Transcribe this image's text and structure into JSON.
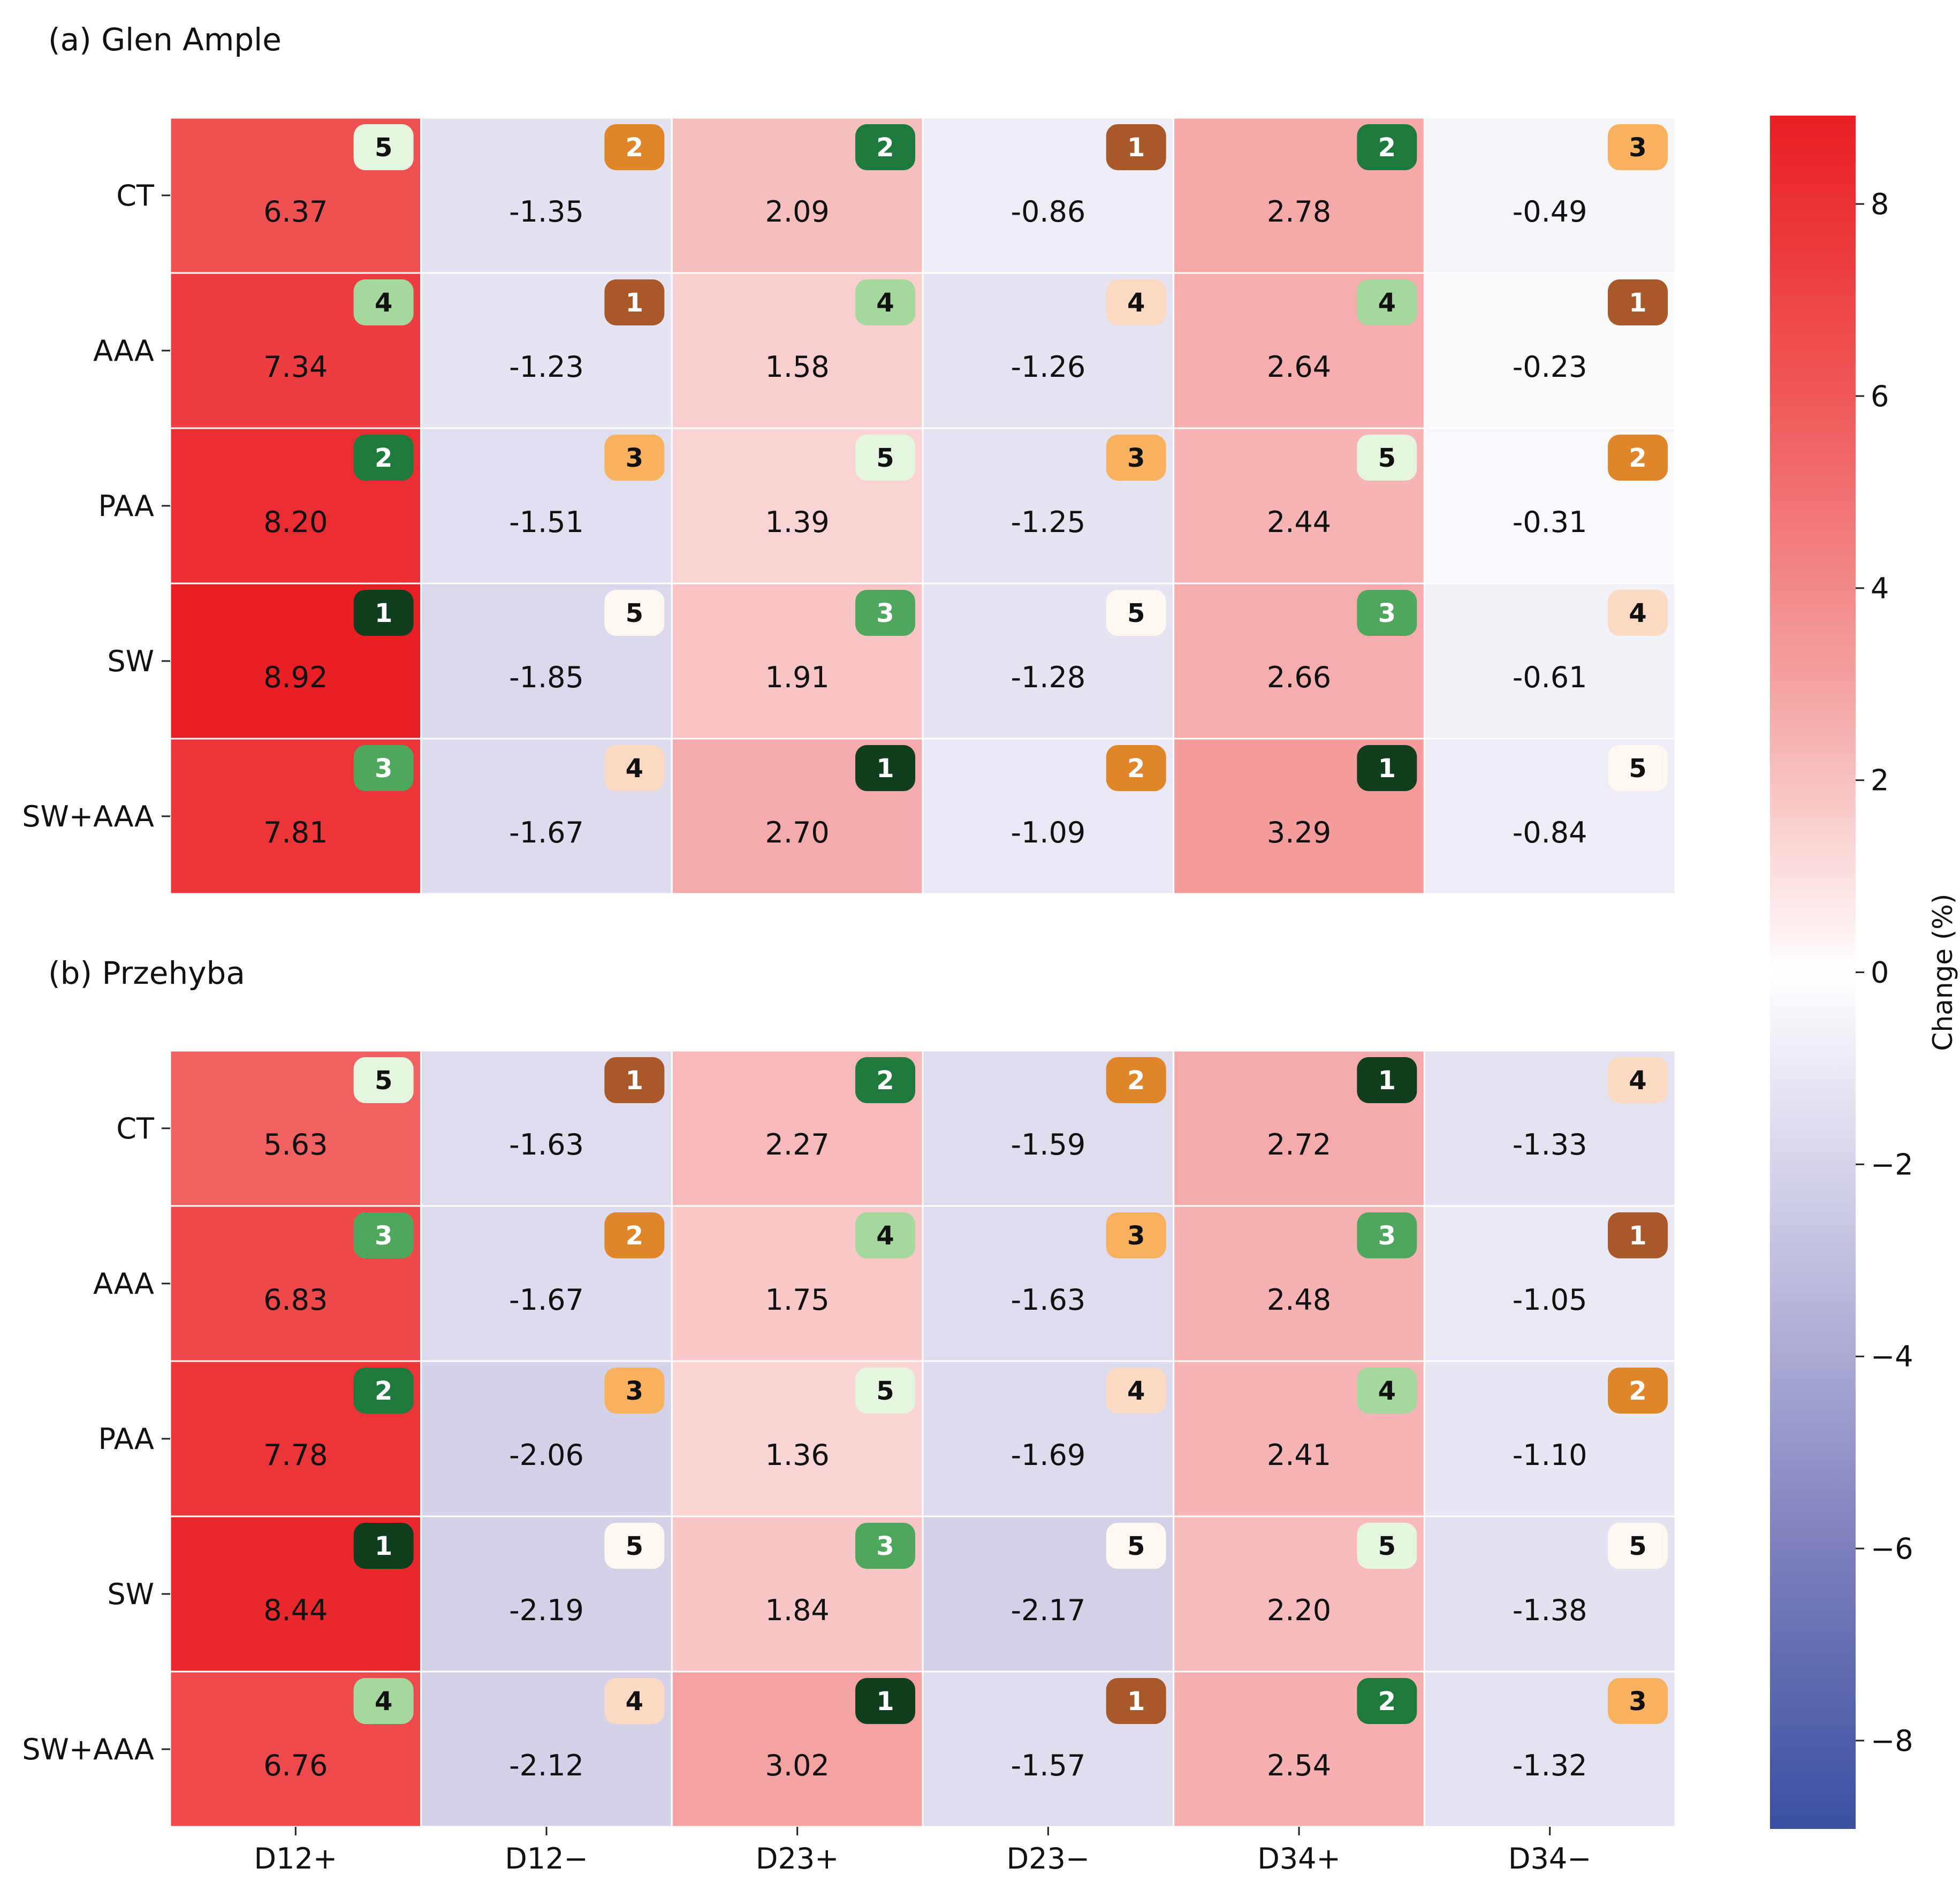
{
  "chart_data": [
    {
      "type": "heatmap",
      "title": "(a) Glen Ample",
      "rows": [
        "CT",
        "AAA",
        "PAA",
        "SW",
        "SW+AAA"
      ],
      "columns": [
        "D12+",
        "D12−",
        "D23+",
        "D23−",
        "D34+",
        "D34−"
      ],
      "values": [
        [
          6.37,
          -1.35,
          2.09,
          -0.86,
          2.78,
          -0.49
        ],
        [
          7.34,
          -1.23,
          1.58,
          -1.26,
          2.64,
          -0.23
        ],
        [
          8.2,
          -1.51,
          1.39,
          -1.25,
          2.44,
          -0.31
        ],
        [
          8.92,
          -1.85,
          1.91,
          -1.28,
          2.66,
          -0.61
        ],
        [
          7.81,
          -1.67,
          2.7,
          -1.09,
          3.29,
          -0.84
        ]
      ],
      "value_labels": [
        [
          "6.37",
          "-1.35",
          "2.09",
          "-0.86",
          "2.78",
          "-0.49"
        ],
        [
          "7.34",
          "-1.23",
          "1.58",
          "-1.26",
          "2.64",
          "-0.23"
        ],
        [
          "8.20",
          "-1.51",
          "1.39",
          "-1.25",
          "2.44",
          "-0.31"
        ],
        [
          "8.92",
          "-1.85",
          "1.91",
          "-1.28",
          "2.66",
          "-0.61"
        ],
        [
          "7.81",
          "-1.67",
          "2.70",
          "-1.09",
          "3.29",
          "-0.84"
        ]
      ],
      "ranks": [
        [
          5,
          2,
          2,
          1,
          2,
          3
        ],
        [
          4,
          1,
          4,
          4,
          4,
          1
        ],
        [
          2,
          3,
          5,
          3,
          5,
          2
        ],
        [
          1,
          5,
          3,
          5,
          3,
          4
        ],
        [
          3,
          4,
          1,
          2,
          1,
          5
        ]
      ]
    },
    {
      "type": "heatmap",
      "title": "(b) Przehyba",
      "rows": [
        "CT",
        "AAA",
        "PAA",
        "SW",
        "SW+AAA"
      ],
      "columns": [
        "D12+",
        "D12−",
        "D23+",
        "D23−",
        "D34+",
        "D34−"
      ],
      "values": [
        [
          5.63,
          -1.63,
          2.27,
          -1.59,
          2.72,
          -1.33
        ],
        [
          6.83,
          -1.67,
          1.75,
          -1.63,
          2.48,
          -1.05
        ],
        [
          7.78,
          -2.06,
          1.36,
          -1.69,
          2.41,
          -1.1
        ],
        [
          8.44,
          -2.19,
          1.84,
          -2.17,
          2.2,
          -1.38
        ],
        [
          6.76,
          -2.12,
          3.02,
          -1.57,
          2.54,
          -1.32
        ]
      ],
      "value_labels": [
        [
          "5.63",
          "-1.63",
          "2.27",
          "-1.59",
          "2.72",
          "-1.33"
        ],
        [
          "6.83",
          "-1.67",
          "1.75",
          "-1.63",
          "2.48",
          "-1.05"
        ],
        [
          "7.78",
          "-2.06",
          "1.36",
          "-1.69",
          "2.41",
          "-1.10"
        ],
        [
          "8.44",
          "-2.19",
          "1.84",
          "-2.17",
          "2.20",
          "-1.38"
        ],
        [
          "6.76",
          "-2.12",
          "3.02",
          "-1.57",
          "2.54",
          "-1.32"
        ]
      ],
      "ranks": [
        [
          5,
          1,
          2,
          2,
          1,
          4
        ],
        [
          3,
          2,
          4,
          3,
          3,
          1
        ],
        [
          2,
          3,
          5,
          4,
          4,
          2
        ],
        [
          1,
          5,
          3,
          5,
          5,
          5
        ],
        [
          4,
          4,
          1,
          1,
          2,
          3
        ]
      ]
    }
  ],
  "colorbar": {
    "label": "Change (%)",
    "range": [
      -8.92,
      8.92
    ],
    "ticks": [
      8,
      6,
      4,
      2,
      0,
      -2,
      -4,
      -6,
      -8
    ],
    "tick_labels": [
      "8",
      "6",
      "4",
      "2",
      "0",
      "−2",
      "−4",
      "−6",
      "−8"
    ],
    "colormap": [
      "#3a4fa0",
      "#7f80bd",
      "#c2c0e0",
      "#ffffff",
      "#f4a3a3",
      "#f0595a",
      "#e81f25"
    ]
  },
  "rank_badge_colors": {
    "positive_columns": {
      "1": "#0f3d1e",
      "2": "#1e7a3c",
      "3": "#4ea75c",
      "4": "#a5d89c",
      "5": "#e6f5e0"
    },
    "negative_columns": {
      "1": "#a9582a",
      "2": "#e0862a",
      "3": "#f8b15f",
      "4": "#fcd9c3",
      "5": "#fff8f2"
    }
  }
}
